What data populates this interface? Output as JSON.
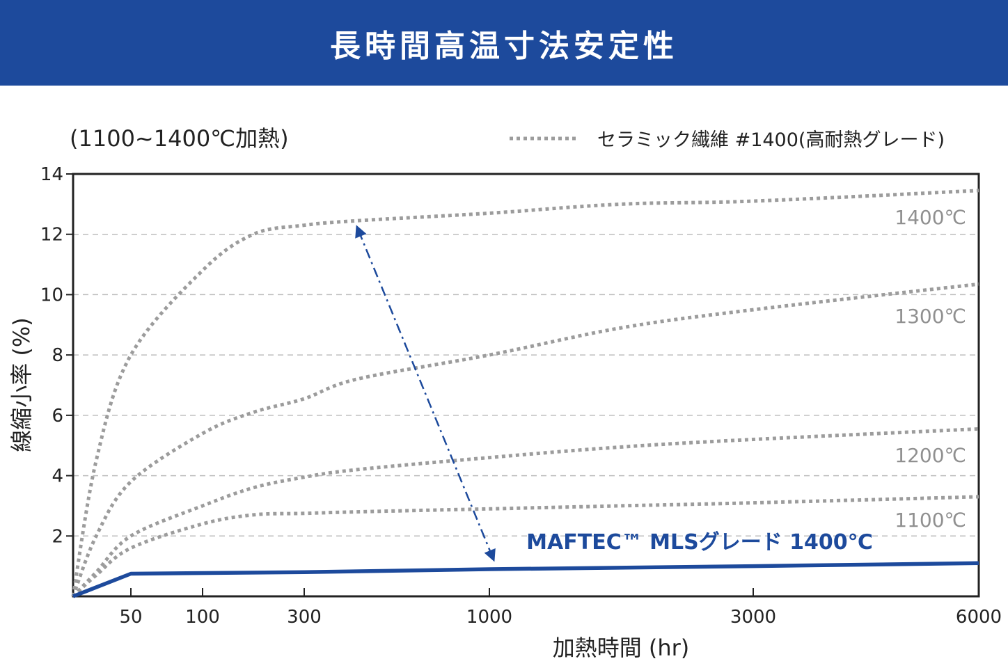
{
  "title": "長時間高温寸法安定性",
  "subtitle": "(1100~1400℃加熱)",
  "legend": {
    "label": "セラミック繊維 #1400(高耐熱グレード)",
    "style": "dotted gray",
    "placement": "top-right"
  },
  "colors": {
    "banner": "#1d4a9c",
    "mls": "#1d4a9c",
    "ceramic": "#9c9c9c",
    "grid": "#bdbdbd"
  },
  "chart_data": {
    "type": "line",
    "xlabel": "加熱時間 (hr)",
    "ylabel": "線縮小率 (%)",
    "x_ticks": [
      50,
      100,
      300,
      1000,
      3000,
      6000
    ],
    "x_tick_labels": [
      "50",
      "100",
      "300",
      "1000",
      "3000",
      "6000"
    ],
    "y_ticks": [
      2,
      4,
      6,
      8,
      10,
      12,
      14
    ],
    "y_tick_labels": [
      "2",
      "4",
      "6",
      "8",
      "10",
      "12",
      "14"
    ],
    "ylim": [
      0,
      14
    ],
    "xlim": [
      0,
      6000
    ],
    "grid": "horizontal dashed",
    "series": [
      {
        "name": "1400℃",
        "group": "セラミック繊維 #1400",
        "style": "dotted",
        "color": "#9c9c9c",
        "points": [
          [
            0,
            0
          ],
          [
            20,
            4.5
          ],
          [
            50,
            8.0
          ],
          [
            100,
            10.8
          ],
          [
            200,
            12.0
          ],
          [
            300,
            12.3
          ],
          [
            500,
            12.45
          ],
          [
            1000,
            12.7
          ],
          [
            2000,
            13.0
          ],
          [
            3000,
            13.1
          ],
          [
            6000,
            13.45
          ]
        ]
      },
      {
        "name": "1300℃",
        "group": "セラミック繊維 #1400",
        "style": "dotted",
        "color": "#9c9c9c",
        "points": [
          [
            0,
            0
          ],
          [
            20,
            2.0
          ],
          [
            50,
            3.8
          ],
          [
            100,
            5.4
          ],
          [
            200,
            6.1
          ],
          [
            300,
            6.55
          ],
          [
            500,
            7.2
          ],
          [
            1000,
            8.0
          ],
          [
            2000,
            8.9
          ],
          [
            3000,
            9.5
          ],
          [
            6000,
            10.35
          ]
        ]
      },
      {
        "name": "1200℃",
        "group": "セラミック繊維 #1400",
        "style": "dotted",
        "color": "#9c9c9c",
        "points": [
          [
            0,
            0
          ],
          [
            20,
            0.8
          ],
          [
            50,
            2.0
          ],
          [
            100,
            3.0
          ],
          [
            200,
            3.6
          ],
          [
            300,
            3.95
          ],
          [
            500,
            4.2
          ],
          [
            1000,
            4.6
          ],
          [
            2000,
            4.95
          ],
          [
            3000,
            5.2
          ],
          [
            6000,
            5.55
          ]
        ]
      },
      {
        "name": "1100℃",
        "group": "セラミック繊維 #1400",
        "style": "dotted",
        "color": "#9c9c9c",
        "points": [
          [
            0,
            0
          ],
          [
            20,
            0.7
          ],
          [
            50,
            1.6
          ],
          [
            100,
            2.4
          ],
          [
            200,
            2.7
          ],
          [
            300,
            2.75
          ],
          [
            500,
            2.8
          ],
          [
            1000,
            2.9
          ],
          [
            2000,
            3.0
          ],
          [
            3000,
            3.1
          ],
          [
            6000,
            3.3
          ]
        ]
      },
      {
        "name": "MAFTEC™ MLSグレード 1400℃",
        "style": "solid",
        "color": "#1d4a9c",
        "points": [
          [
            0,
            0
          ],
          [
            50,
            0.75
          ],
          [
            300,
            0.8
          ],
          [
            1000,
            0.9
          ],
          [
            3000,
            1.0
          ],
          [
            6000,
            1.1
          ]
        ]
      }
    ],
    "annotations": [
      {
        "type": "double-arrow dash-dot",
        "from": [
          500,
          12.4
        ],
        "to": [
          1000,
          1.1
        ]
      }
    ]
  }
}
